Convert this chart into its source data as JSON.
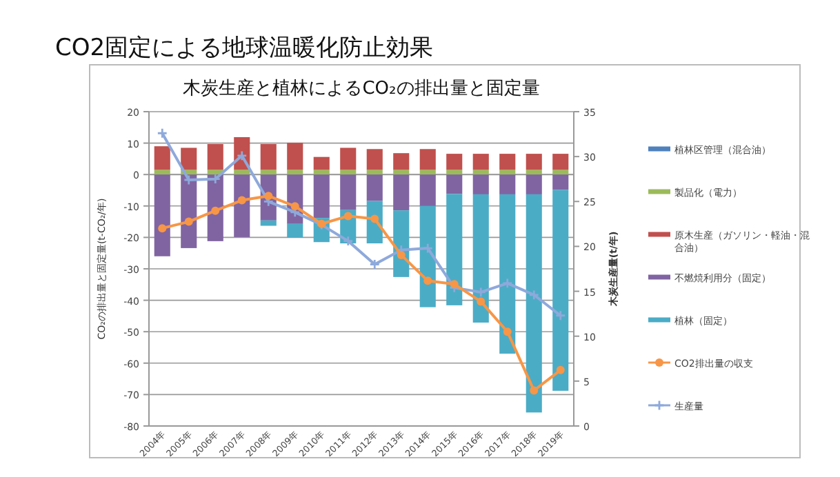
{
  "chart_data": {
    "type": "bar",
    "stacked": true,
    "title": "CO2固定による地球温暖化防止効果",
    "subtitle": "木炭生産と植林によるCO₂の排出量と固定量",
    "ylabel": "CO₂の排出量と固定量(t-CO₂/年)",
    "y2label": "木炭生産量(t/年)",
    "categories": [
      "2004年",
      "2005年",
      "2006年",
      "2007年",
      "2008年",
      "2009年",
      "2010年",
      "2011年",
      "2012年",
      "2013年",
      "2014年",
      "2015年",
      "2016年",
      "2017年",
      "2018年",
      "2019年"
    ],
    "series": [
      {
        "name": "植林区管理（混合油）",
        "color": "#4f81bd",
        "values": [
          0,
          0,
          0,
          0,
          0,
          0,
          0,
          0,
          0,
          0,
          0,
          0,
          0,
          0,
          0,
          0
        ]
      },
      {
        "name": "製品化（電力）",
        "color": "#9bbb59",
        "values": [
          1.5,
          1.5,
          1.5,
          1.5,
          1.5,
          1.5,
          1.5,
          1.5,
          1.5,
          1.5,
          1.5,
          1.5,
          1.5,
          1.5,
          1.5,
          1.5
        ]
      },
      {
        "name": "原木生産（ガソリン・軽油・混合油）",
        "color": "#c0504d",
        "values": [
          7.5,
          7,
          8.2,
          10.4,
          8.2,
          8.6,
          4.1,
          7,
          6.6,
          5.3,
          6.6,
          5.1,
          5.1,
          5.1,
          5.1,
          5.1
        ]
      },
      {
        "name": "不燃焼利用分（固定）",
        "color": "#8064a2",
        "values": [
          -26,
          -23.4,
          -21.2,
          -19.9,
          -14.6,
          -15.7,
          -13.8,
          -11.3,
          -8.4,
          -11.4,
          -10,
          -6.2,
          -6.3,
          -6.3,
          -6.3,
          -4.9
        ]
      },
      {
        "name": "植林（固定）",
        "color": "#4bacc6",
        "values": [
          0,
          0,
          0,
          0,
          -1.7,
          -4.4,
          -7.7,
          -10.6,
          -13.5,
          -21.2,
          -32.2,
          -35.4,
          -40.8,
          -50.7,
          -69.4,
          -63.9
        ]
      },
      {
        "name": "CO2排出量の収支",
        "type": "line",
        "color": "#f79646",
        "marker": "circle",
        "values": [
          -17.1,
          -15,
          -11.5,
          -8.2,
          -6.8,
          -10.1,
          -15.7,
          -13.2,
          -14.1,
          -25.6,
          -33.8,
          -34.9,
          -40.4,
          -50,
          -68.7,
          -62.2
        ]
      },
      {
        "name": "生産量",
        "type": "line",
        "axis": "y2",
        "color": "#8ea9db",
        "marker": "cross",
        "values": [
          32.6,
          27.4,
          27.5,
          30.1,
          25,
          23.8,
          22.4,
          20.6,
          18,
          19.6,
          19.8,
          15.4,
          14.9,
          15.9,
          14.6,
          12.3
        ]
      }
    ],
    "ylim": [
      -80,
      20
    ],
    "yticks": [
      -80,
      -70,
      -60,
      -50,
      -40,
      -30,
      -20,
      -10,
      0,
      10,
      20
    ],
    "y2lim": [
      0,
      35
    ],
    "y2ticks": [
      0,
      5,
      10,
      15,
      20,
      25,
      30,
      35
    ],
    "grid": "y",
    "legend": "right"
  }
}
